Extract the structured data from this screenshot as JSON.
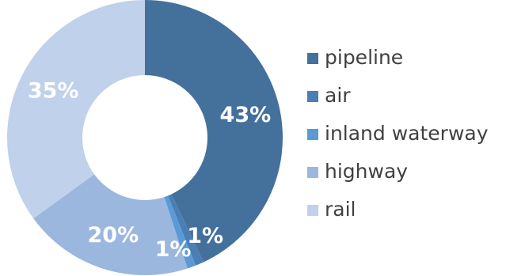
{
  "chart_data": {
    "type": "pie",
    "variant": "donut",
    "categories": [
      "pipeline",
      "air",
      "inland waterway",
      "highway",
      "rail"
    ],
    "values": [
      43,
      1,
      1,
      20,
      35
    ],
    "labels": [
      "43%",
      "1%",
      "1%",
      "20%",
      "35%"
    ],
    "colors": [
      "#44709c",
      "#4a7fb5",
      "#5b9ad5",
      "#9bb7de",
      "#bfd1eb"
    ],
    "legend_position": "right"
  },
  "legend": {
    "items": [
      {
        "label": "pipeline",
        "color": "#44709c"
      },
      {
        "label": "air",
        "color": "#4a7fb5"
      },
      {
        "label": "inland waterway",
        "color": "#5b9ad5"
      },
      {
        "label": "highway",
        "color": "#9bb7de"
      },
      {
        "label": "rail",
        "color": "#bfd1eb"
      }
    ]
  }
}
